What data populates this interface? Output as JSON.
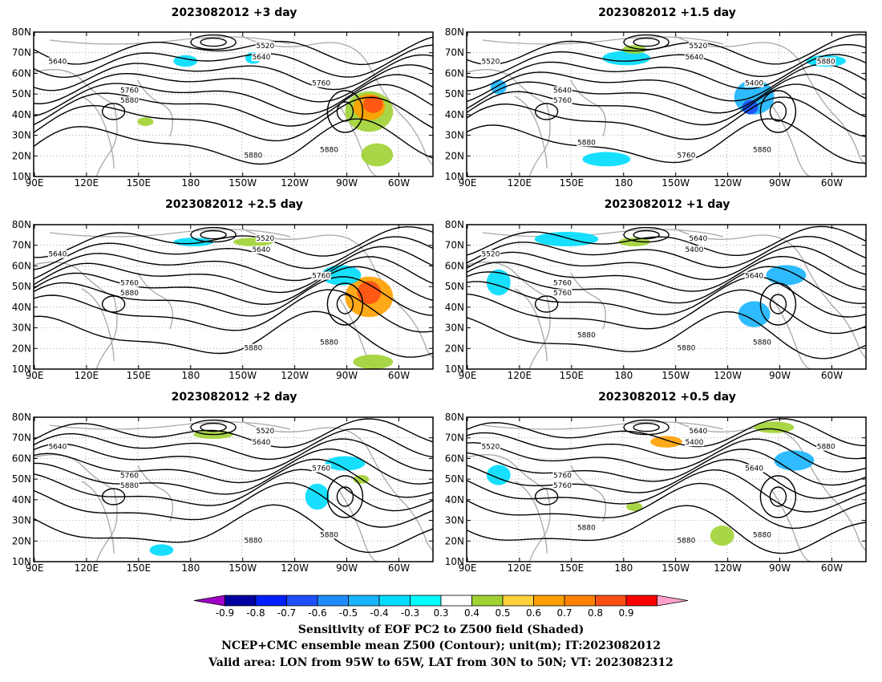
{
  "panels": [
    {
      "id": "p1",
      "title": "2023082012 +3 day"
    },
    {
      "id": "p2",
      "title": "2023082012 +1.5 day"
    },
    {
      "id": "p3",
      "title": "2023082012 +2.5 day"
    },
    {
      "id": "p4",
      "title": "2023082012 +1 day"
    },
    {
      "id": "p5",
      "title": "2023082012 +2 day"
    },
    {
      "id": "p6",
      "title": "2023082012 +0.5 day"
    }
  ],
  "axes": {
    "lat_labels": [
      "80N",
      "70N",
      "60N",
      "50N",
      "40N",
      "30N",
      "20N",
      "10N"
    ],
    "lon_labels": [
      "90E",
      "120E",
      "150E",
      "180",
      "150W",
      "120W",
      "90W",
      "60W"
    ]
  },
  "contour_labels": [
    {
      "panel": 0,
      "items": [
        "5640",
        "5520",
        "5640",
        "5760",
        "5760",
        "5880",
        "5880",
        "5880"
      ]
    },
    {
      "panel": 1,
      "items": [
        "5520",
        "5520",
        "5640",
        "5400",
        "5640",
        "5760",
        "5760",
        "5880",
        "5880",
        "5880"
      ]
    },
    {
      "panel": 2,
      "items": [
        "5640",
        "5520",
        "5640",
        "5760",
        "5760",
        "5880",
        "5880",
        "5880"
      ]
    },
    {
      "panel": 3,
      "items": [
        "5520",
        "5640",
        "5400",
        "5640",
        "5760",
        "5760",
        "5880",
        "5880",
        "5880"
      ]
    },
    {
      "panel": 4,
      "items": [
        "5640",
        "5520",
        "5640",
        "5760",
        "5760",
        "5880",
        "5880",
        "5880"
      ]
    },
    {
      "panel": 5,
      "items": [
        "5520",
        "5640",
        "5400",
        "5640",
        "5760",
        "5760",
        "5880",
        "5880",
        "5880",
        "5880"
      ]
    }
  ],
  "colorbar": {
    "labels": [
      "-0.9",
      "-0.8",
      "-0.7",
      "-0.6",
      "-0.5",
      "-0.4",
      "-0.3",
      "0.3",
      "0.4",
      "0.5",
      "0.6",
      "0.7",
      "0.8",
      "0.9"
    ],
    "colors": [
      "#a000c8",
      "#0000a0",
      "#0020ff",
      "#1e50ff",
      "#1e8cff",
      "#18b4ff",
      "#00dcff",
      "#00ffff",
      "#ffffff",
      "#a0d232",
      "#ffd23c",
      "#ffa000",
      "#ff8200",
      "#ff5014",
      "#ff0000",
      "#ffa0c8"
    ]
  },
  "caption": {
    "line1": "Sensitivity of EOF PC2 to Z500 field (Shaded)",
    "line2": "NCEP+CMC ensemble mean Z500 (Contour); unit(m); IT:2023082012",
    "line3": "Valid area: LON from 95W to 65W, LAT from 30N to 50N; VT: 2023082312"
  }
}
